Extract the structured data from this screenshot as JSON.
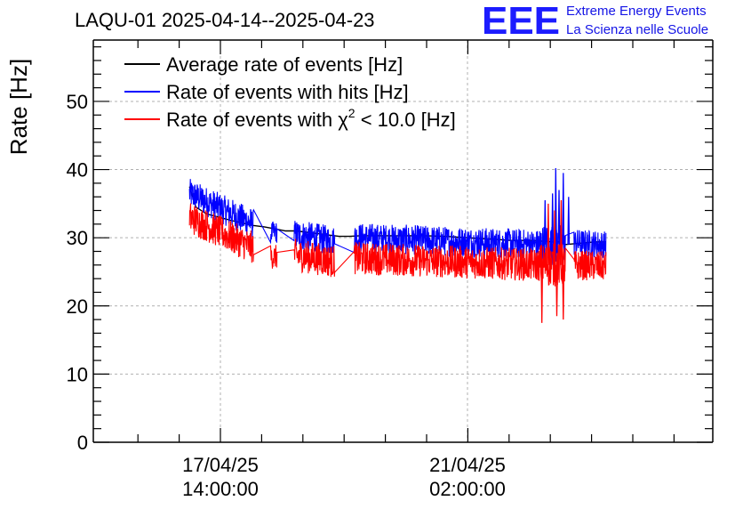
{
  "header": {
    "title": "LAQU-01 2025-04-14--2025-04-23"
  },
  "logo": {
    "mark": "EEE",
    "line1": "Extreme Energy Events",
    "line2": "La Scienza nelle Scuole",
    "color": "#1c1cff"
  },
  "chart_data": {
    "type": "line",
    "title": "LAQU-01 2025-04-14--2025-04-23",
    "xlabel": "",
    "ylabel": "Rate [Hz]",
    "ylim": [
      0,
      59
    ],
    "yticks": [
      0,
      10,
      20,
      30,
      40,
      50
    ],
    "xticks": [
      {
        "line1": "17/04/25",
        "line2": "14:00:00"
      },
      {
        "line1": "21/04/25",
        "line2": "02:00:00"
      }
    ],
    "grid": true,
    "legend_position": "top-left",
    "legend": [
      {
        "label": "Average rate of events [Hz]",
        "color": "#000000"
      },
      {
        "label": "Rate of events with hits [Hz]",
        "color": "#0000ff"
      },
      {
        "label_main": "Rate of events with ",
        "label_chi": "χ",
        "label_sup": "2",
        "label_rest": " < 10.0 [Hz]",
        "color": "#ff0000"
      }
    ],
    "series": [
      {
        "name": "Average rate of events [Hz]",
        "color": "#000000",
        "points": [
          [
            0.0,
            37.5
          ],
          [
            0.3,
            34.5
          ],
          [
            0.8,
            33.5
          ],
          [
            2.0,
            32.5
          ],
          [
            3.0,
            31.8
          ],
          [
            3.5,
            31.6
          ],
          [
            4.0,
            31.3
          ],
          [
            4.5,
            31.0
          ],
          [
            5.0,
            31.0
          ],
          [
            5.5,
            30.8
          ],
          [
            6.0,
            30.6
          ],
          [
            6.3,
            30.5
          ],
          [
            6.5,
            30.4
          ],
          [
            7.0,
            30.2
          ],
          [
            7.5,
            30.2
          ],
          [
            8.0,
            30.3
          ],
          [
            9.0,
            30.3
          ],
          [
            10.0,
            30.3
          ],
          [
            11.0,
            30.3
          ],
          [
            12.0,
            30.2
          ],
          [
            13.0,
            30.0
          ],
          [
            14.0,
            29.8
          ],
          [
            14.2,
            29.8
          ],
          [
            15.0,
            29.6
          ],
          [
            16.0,
            29.6
          ],
          [
            17.0,
            29.4
          ],
          [
            17.4,
            29.4
          ],
          [
            17.6,
            29.0
          ],
          [
            19.0,
            29.4
          ],
          [
            19.5,
            29.4
          ]
        ]
      },
      {
        "name": "Rate of events with hits [Hz]",
        "color": "#0000ff",
        "segments": [
          {
            "x": [
              0.0,
              3.0
            ],
            "mean_start": 36.5,
            "mean_end": 32.0,
            "noise": 2.2
          },
          {
            "x": [
              3.8,
              4.1
            ],
            "mean_start": 30.8,
            "mean_end": 30.8,
            "noise": 1.6
          },
          {
            "x": [
              4.9,
              6.8
            ],
            "mean_start": 30.5,
            "mean_end": 29.5,
            "noise": 2.2
          },
          {
            "x": [
              7.7,
              16.4
            ],
            "mean_start": 30.0,
            "mean_end": 29.0,
            "noise": 2.2
          },
          {
            "x": [
              16.4,
              17.6
            ],
            "mean_start": 29.0,
            "mean_end": 29.0,
            "noise": 3.0,
            "spikes": [
              [
                16.65,
                35.5
              ],
              [
                17.0,
                36.5
              ],
              [
                17.15,
                40.2
              ],
              [
                17.3,
                37.0
              ],
              [
                17.5,
                39.5
              ],
              [
                17.75,
                36.0
              ]
            ]
          },
          {
            "x": [
              18.0,
              19.5
            ],
            "mean_start": 29.3,
            "mean_end": 29.0,
            "noise": 2.0
          }
        ]
      },
      {
        "name": "Rate of events with χ2 < 10.0 [Hz]",
        "color": "#ff0000",
        "segments": [
          {
            "x": [
              0.0,
              3.0
            ],
            "mean_start": 33.0,
            "mean_end": 28.5,
            "noise": 2.4
          },
          {
            "x": [
              3.8,
              4.1
            ],
            "mean_start": 27.2,
            "mean_end": 27.2,
            "noise": 1.8
          },
          {
            "x": [
              4.9,
              6.8
            ],
            "mean_start": 27.5,
            "mean_end": 26.5,
            "noise": 2.4
          },
          {
            "x": [
              7.7,
              16.4
            ],
            "mean_start": 27.0,
            "mean_end": 26.0,
            "noise": 2.4
          },
          {
            "x": [
              16.4,
              17.6
            ],
            "mean_start": 26.0,
            "mean_end": 26.0,
            "noise": 3.2,
            "spikes": [
              [
                16.5,
                17.5
              ],
              [
                16.8,
                35.0
              ],
              [
                17.1,
                34.0
              ],
              [
                17.2,
                18.5
              ],
              [
                17.4,
                35.5
              ],
              [
                17.5,
                18.0
              ]
            ]
          },
          {
            "x": [
              18.0,
              19.5
            ],
            "mean_start": 26.0,
            "mean_end": 25.8,
            "noise": 2.2
          }
        ]
      }
    ]
  }
}
